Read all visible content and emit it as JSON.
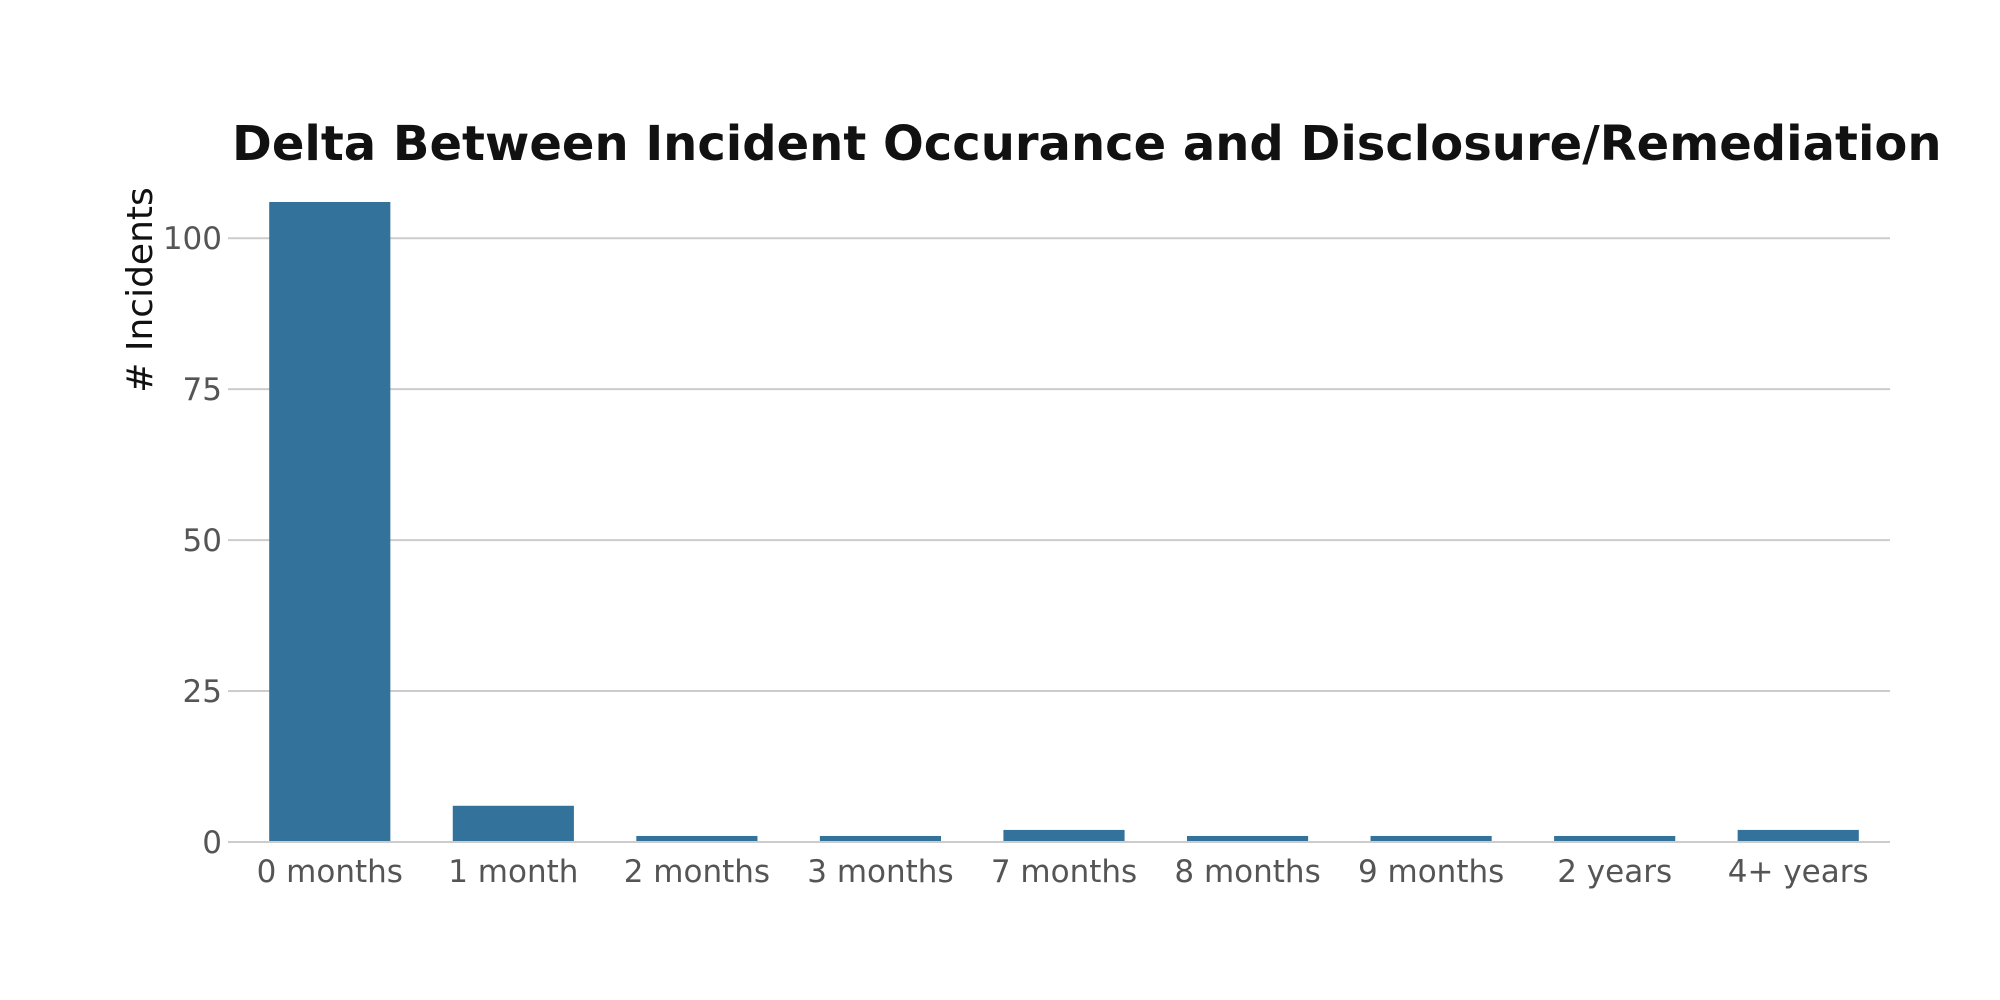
{
  "chart_data": {
    "type": "bar",
    "title": "Delta Between Incident Occurance and Disclosure/Remediation",
    "xlabel": "",
    "ylabel": "# Incidents",
    "categories": [
      "0 months",
      "1 month",
      "2 months",
      "3 months",
      "7 months",
      "8 months",
      "9 months",
      "2 years",
      "4+ years"
    ],
    "values": [
      106,
      6,
      1,
      1,
      2,
      1,
      1,
      1,
      2
    ],
    "ylim": [
      0,
      106
    ],
    "yticks": [
      0,
      25,
      50,
      75,
      100
    ],
    "grid": true,
    "bar_color": "#33729b"
  }
}
